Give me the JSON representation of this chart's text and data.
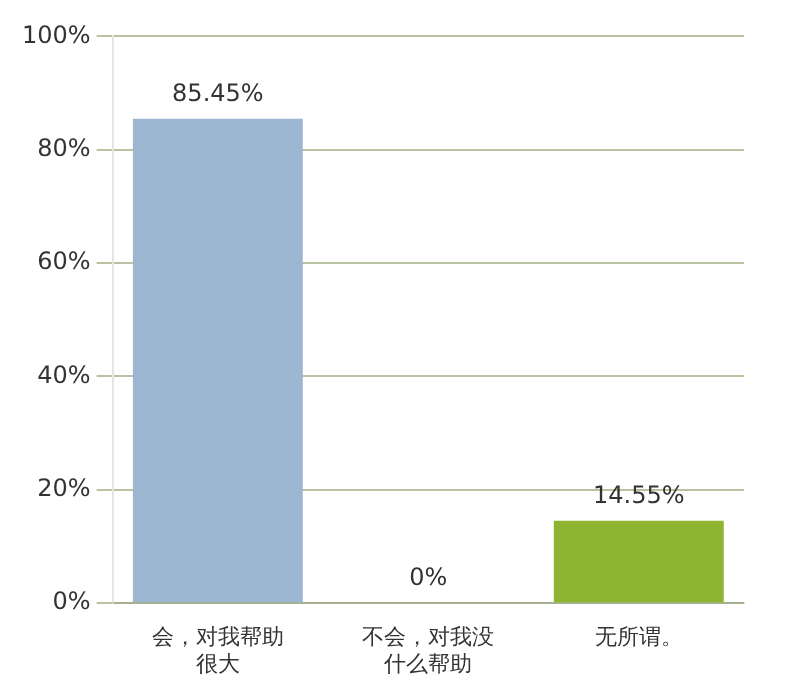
{
  "chart_data": {
    "type": "bar",
    "categories": [
      "会，对我帮助很大",
      "不会，对我没什么帮助",
      "无所谓。"
    ],
    "values": [
      85.45,
      0,
      14.55
    ],
    "colors": [
      "#9db6d2",
      "#f0b830",
      "#8fb431"
    ],
    "value_labels": [
      "85.45%",
      "0%",
      "14.55%"
    ],
    "ylim": [
      0,
      100
    ],
    "yticks": [
      {
        "value": 0,
        "label": "0%"
      },
      {
        "value": 20,
        "label": "20%"
      },
      {
        "value": 40,
        "label": "40%"
      },
      {
        "value": 60,
        "label": "60%"
      },
      {
        "value": 80,
        "label": "80%"
      },
      {
        "value": 100,
        "label": "100%"
      }
    ],
    "grid": "y",
    "legend": false
  }
}
